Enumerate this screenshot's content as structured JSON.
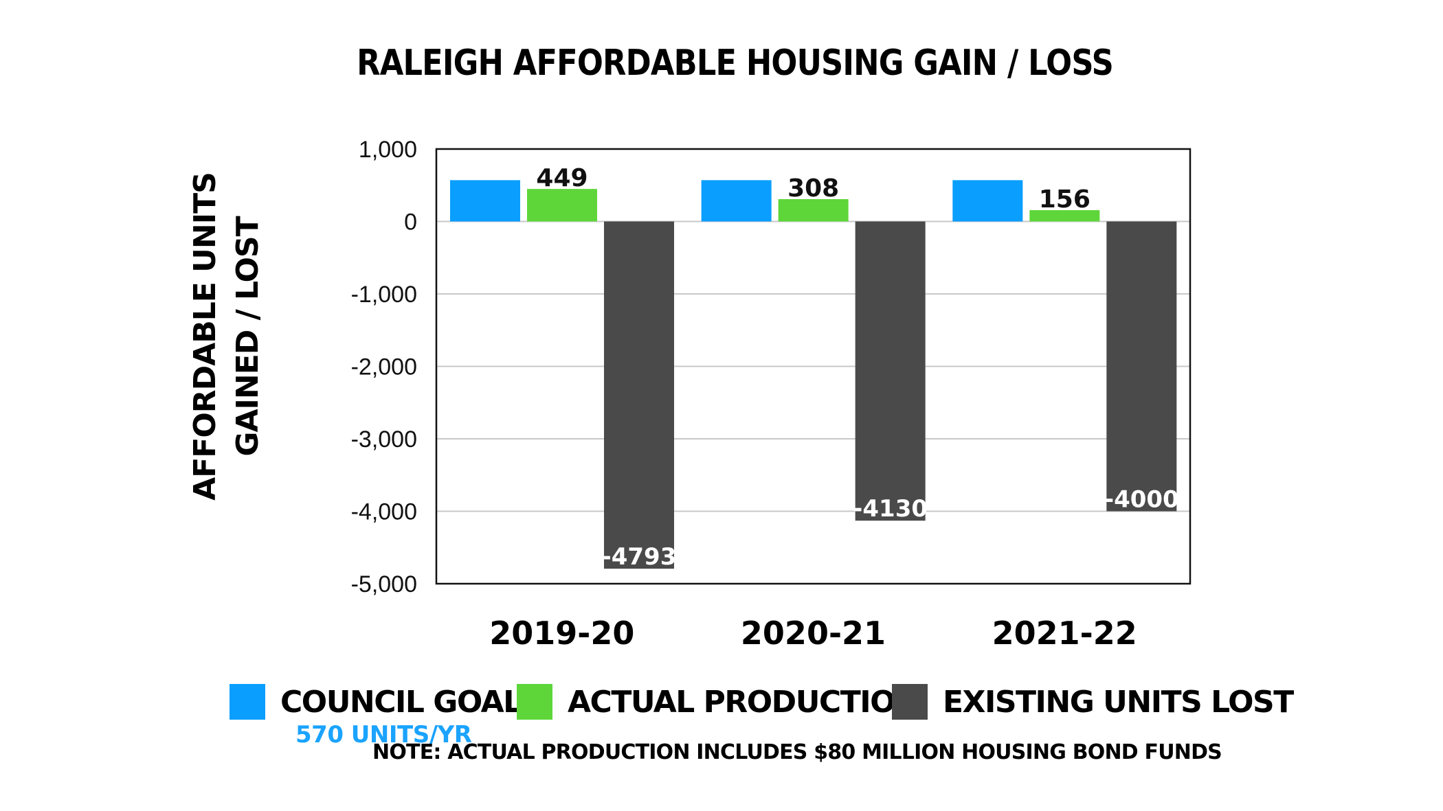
{
  "chart_data": {
    "type": "bar",
    "title": "RALEIGH AFFORDABLE HOUSING GAIN / LOSS",
    "ylabel": [
      "AFFORDABLE UNITS",
      "GAINED / LOST"
    ],
    "xlabel": "",
    "categories": [
      "2019-20",
      "2020-21",
      "2021-22"
    ],
    "ylim": [
      -5000,
      1000
    ],
    "yticks": [
      1000,
      0,
      -1000,
      -2000,
      -3000,
      -4000,
      -5000
    ],
    "ytick_labels": [
      "1,000",
      "0",
      "-1,000",
      "-2,000",
      "-3,000",
      "-4,000",
      "-5,000"
    ],
    "grid": true,
    "legend_position": "bottom",
    "series": [
      {
        "name": "COUNCIL GOAL",
        "color": "#0a9eff",
        "values": [
          570,
          570,
          570
        ],
        "labels": [
          "",
          "",
          ""
        ]
      },
      {
        "name": "ACTUAL PRODUCTION",
        "color": "#5ed63a",
        "values": [
          449,
          308,
          156
        ],
        "labels": [
          "449",
          "308",
          "156"
        ]
      },
      {
        "name": "EXISTING UNITS LOST",
        "color": "#4a4a4a",
        "values": [
          -4793,
          -4130,
          -4000
        ],
        "labels": [
          "-4793",
          "-4130",
          "-4000"
        ]
      }
    ]
  },
  "legend": {
    "goal_sub": "570 UNITS/YR",
    "note": "NOTE: ACTUAL PRODUCTION INCLUDES $80 MILLION HOUSING BOND FUNDS"
  }
}
